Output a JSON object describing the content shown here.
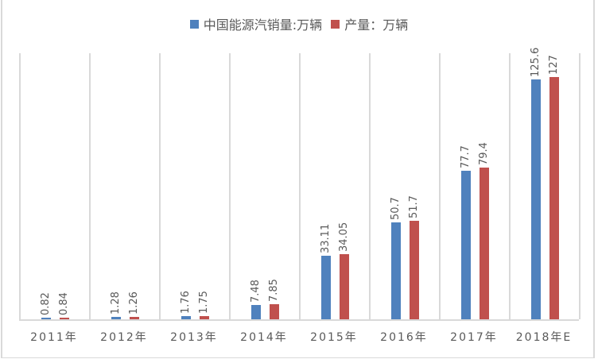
{
  "chart_data": {
    "type": "bar",
    "title": "",
    "xlabel": "",
    "ylabel": "",
    "ylim": [
      0,
      140
    ],
    "grid": "vertical category separators",
    "legend_position": "top",
    "categories": [
      "2011年",
      "2012年",
      "2013年",
      "2014年",
      "2015年",
      "2016年",
      "2017年",
      "2018年E"
    ],
    "series": [
      {
        "name": "中国能源汽销量:万辆",
        "color": "#4f81bd",
        "values": [
          0.82,
          1.28,
          1.76,
          7.48,
          33.11,
          50.7,
          77.7,
          125.6
        ],
        "labels": [
          "0.82",
          "1.28",
          "1.76",
          "7.48",
          "33.11",
          "50.7",
          "77.7",
          "125.6"
        ]
      },
      {
        "name": "产量：万辆",
        "color": "#c0504d",
        "values": [
          0.84,
          1.26,
          1.75,
          7.85,
          34.05,
          51.7,
          79.4,
          127
        ],
        "labels": [
          "0.84",
          "1.26",
          "1.75",
          "7.85",
          "34.05",
          "51.7",
          "79.4",
          "127"
        ]
      }
    ]
  }
}
